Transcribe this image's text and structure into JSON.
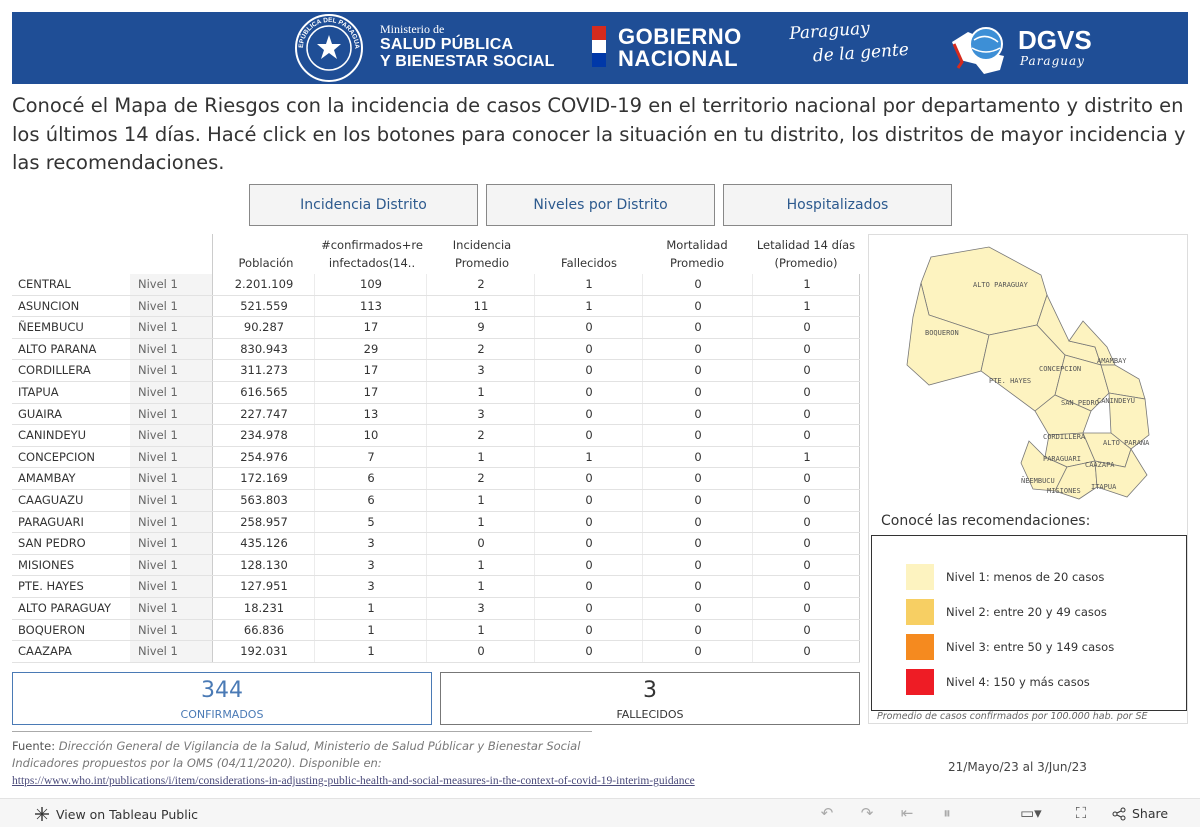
{
  "header": {
    "ministerio_small": "Ministerio de",
    "ministerio_line1": "SALUD PÚBLICA",
    "ministerio_line2": "Y BIENESTAR SOCIAL",
    "gobierno_line1": "GOBIERNO",
    "gobierno_line2": "NACIONAL",
    "slogan_line1": "Paraguay",
    "slogan_line2": "de la gente",
    "dgvs": "DGVS",
    "dgvs_sub": "Paraguay",
    "seal_text": "REPÚBLICA DEL PARAGUAY",
    "colors": {
      "banner": "#1f4e96",
      "flag_red": "#d52b1e",
      "flag_white": "#ffffff",
      "flag_blue": "#0038a8"
    }
  },
  "intro": "Conocé el Mapa de Riesgos con la incidencia de casos COVID-19 en el territorio nacional por departamento y distrito en los últimos 14 días. Hacé click en los botones para conocer la situación en tu distrito, los distritos de mayor incidencia y las recomendaciones.",
  "nav": {
    "incidencia": "Incidencia Distrito",
    "niveles": "Niveles por Distrito",
    "hospitalizados": "Hospitalizados"
  },
  "table": {
    "headers": {
      "poblacion": "Población",
      "confirmados_1": "#confirmados+re",
      "confirmados_2": "infectados(14..",
      "incidencia_1": "Incidencia",
      "incidencia_2": "Promedio",
      "fallecidos": "Fallecidos",
      "mortalidad_1": "Mortalidad",
      "mortalidad_2": "Promedio",
      "letalidad_1": "Letalidad 14 días",
      "letalidad_2": "(Promedio)"
    },
    "rows": [
      {
        "dept": "CENTRAL",
        "nivel": "Nivel 1",
        "poblacion": "2.201.109",
        "confirmados": "109",
        "incidencia": "2",
        "fallecidos": "1",
        "mortalidad": "0",
        "letalidad": "1"
      },
      {
        "dept": "ASUNCION",
        "nivel": "Nivel 1",
        "poblacion": "521.559",
        "confirmados": "113",
        "incidencia": "11",
        "fallecidos": "1",
        "mortalidad": "0",
        "letalidad": "1"
      },
      {
        "dept": "ÑEEMBUCU",
        "nivel": "Nivel 1",
        "poblacion": "90.287",
        "confirmados": "17",
        "incidencia": "9",
        "fallecidos": "0",
        "mortalidad": "0",
        "letalidad": "0"
      },
      {
        "dept": "ALTO PARANA",
        "nivel": "Nivel 1",
        "poblacion": "830.943",
        "confirmados": "29",
        "incidencia": "2",
        "fallecidos": "0",
        "mortalidad": "0",
        "letalidad": "0"
      },
      {
        "dept": "CORDILLERA",
        "nivel": "Nivel 1",
        "poblacion": "311.273",
        "confirmados": "17",
        "incidencia": "3",
        "fallecidos": "0",
        "mortalidad": "0",
        "letalidad": "0"
      },
      {
        "dept": "ITAPUA",
        "nivel": "Nivel 1",
        "poblacion": "616.565",
        "confirmados": "17",
        "incidencia": "1",
        "fallecidos": "0",
        "mortalidad": "0",
        "letalidad": "0"
      },
      {
        "dept": "GUAIRA",
        "nivel": "Nivel 1",
        "poblacion": "227.747",
        "confirmados": "13",
        "incidencia": "3",
        "fallecidos": "0",
        "mortalidad": "0",
        "letalidad": "0"
      },
      {
        "dept": "CANINDEYU",
        "nivel": "Nivel 1",
        "poblacion": "234.978",
        "confirmados": "10",
        "incidencia": "2",
        "fallecidos": "0",
        "mortalidad": "0",
        "letalidad": "0"
      },
      {
        "dept": "CONCEPCION",
        "nivel": "Nivel 1",
        "poblacion": "254.976",
        "confirmados": "7",
        "incidencia": "1",
        "fallecidos": "1",
        "mortalidad": "0",
        "letalidad": "1"
      },
      {
        "dept": "AMAMBAY",
        "nivel": "Nivel 1",
        "poblacion": "172.169",
        "confirmados": "6",
        "incidencia": "2",
        "fallecidos": "0",
        "mortalidad": "0",
        "letalidad": "0"
      },
      {
        "dept": "CAAGUAZU",
        "nivel": "Nivel 1",
        "poblacion": "563.803",
        "confirmados": "6",
        "incidencia": "1",
        "fallecidos": "0",
        "mortalidad": "0",
        "letalidad": "0"
      },
      {
        "dept": "PARAGUARI",
        "nivel": "Nivel 1",
        "poblacion": "258.957",
        "confirmados": "5",
        "incidencia": "1",
        "fallecidos": "0",
        "mortalidad": "0",
        "letalidad": "0"
      },
      {
        "dept": "SAN PEDRO",
        "nivel": "Nivel 1",
        "poblacion": "435.126",
        "confirmados": "3",
        "incidencia": "0",
        "fallecidos": "0",
        "mortalidad": "0",
        "letalidad": "0"
      },
      {
        "dept": "MISIONES",
        "nivel": "Nivel 1",
        "poblacion": "128.130",
        "confirmados": "3",
        "incidencia": "1",
        "fallecidos": "0",
        "mortalidad": "0",
        "letalidad": "0"
      },
      {
        "dept": "PTE. HAYES",
        "nivel": "Nivel 1",
        "poblacion": "127.951",
        "confirmados": "3",
        "incidencia": "1",
        "fallecidos": "0",
        "mortalidad": "0",
        "letalidad": "0"
      },
      {
        "dept": "ALTO PARAGUAY",
        "nivel": "Nivel 1",
        "poblacion": "18.231",
        "confirmados": "1",
        "incidencia": "3",
        "fallecidos": "0",
        "mortalidad": "0",
        "letalidad": "0"
      },
      {
        "dept": "BOQUERON",
        "nivel": "Nivel 1",
        "poblacion": "66.836",
        "confirmados": "1",
        "incidencia": "1",
        "fallecidos": "0",
        "mortalidad": "0",
        "letalidad": "0"
      },
      {
        "dept": "CAAZAPA",
        "nivel": "Nivel 1",
        "poblacion": "192.031",
        "confirmados": "1",
        "incidencia": "0",
        "fallecidos": "0",
        "mortalidad": "0",
        "letalidad": "0"
      }
    ]
  },
  "kpis": {
    "confirmados_value": "344",
    "confirmados_label": "CONFIRMADOS",
    "fallecidos_value": "3",
    "fallecidos_label": "FALLECIDOS",
    "confirmados_color": "#4a7ab5"
  },
  "map": {
    "labels": {
      "alto_paraguay": "ALTO PARAGUAY",
      "boqueron": "BOQUERON",
      "pte_hayes": "PTE. HAYES",
      "concepcion": "CONCEPCION",
      "amambay": "AMAMBAY",
      "san_pedro": "SAN PEDRO",
      "canindeyu": "CANINDEYU",
      "cordillera": "CORDILLERA",
      "alto_parana": "ALTO PARANA",
      "paraguari": "PARAGUARI",
      "caazapa": "CAAZAPA",
      "neembucu": "ÑEEMBUCU",
      "misiones": "MISIONES",
      "itapua": "ITAPUA"
    },
    "fill_color": "#fdf3c0",
    "recomendaciones_title": "Conocé las recomendaciones:",
    "legend": [
      {
        "label": "Nivel 1: menos de 20 casos",
        "color": "#fdf3c0"
      },
      {
        "label": "Nivel 2: entre 20 y 49 casos",
        "color": "#f7cf63"
      },
      {
        "label": "Nivel 3: entre 50 y 149 casos",
        "color": "#f58a1f"
      },
      {
        "label": "Nivel 4: 150 y más casos",
        "color": "#ee1c25"
      }
    ],
    "footnote": "Promedio de casos confirmados por 100.000 hab. por SE"
  },
  "footer": {
    "fuente_label": "Fuente:",
    "fuente_text": "Dirección General de Vigilancia de la Salud, Ministerio de Salud Públicar y Bienestar Social",
    "indicadores": "Indicadores propuestos por la OMS (04/11/2020). Disponible en:",
    "link": "https://www.who.int/publications/i/item/considerations-in-adjusting-public-health-and-social-measures-in-the-context-of-covid-19-interim-guidance",
    "date_range": "21/Mayo/23 al 3/Jun/23"
  },
  "toolbar": {
    "view_label": "View on Tableau Public",
    "share_label": "Share",
    "undo_icon": "undo-icon",
    "redo_icon": "redo-icon",
    "revert_icon": "revert-icon",
    "pause_icon": "pause-icon",
    "device_icon": "device-icon",
    "fullscreen_icon": "fullscreen-icon"
  }
}
